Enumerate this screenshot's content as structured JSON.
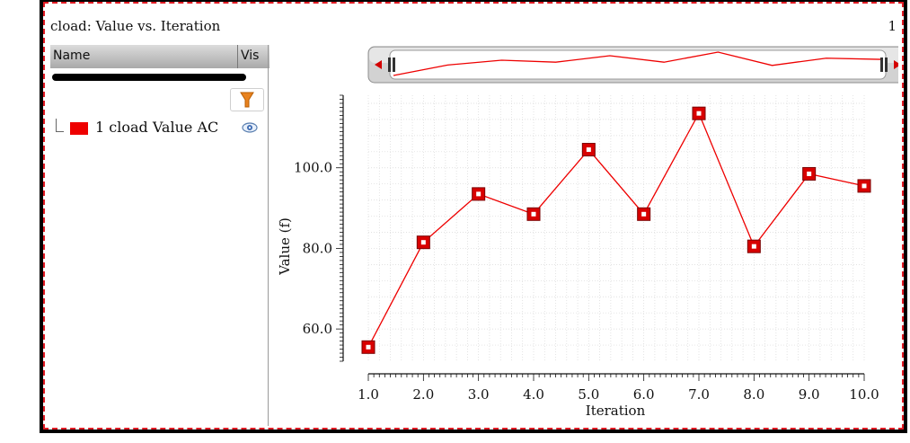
{
  "panel": {
    "title": "cload: Value vs. Iteration",
    "page_number": "1"
  },
  "series_list": {
    "col_name": "Name",
    "col_vis": "Vis",
    "items": [
      {
        "label": "1 cload Value AC",
        "color": "#ee0000"
      }
    ]
  },
  "icons": {
    "filter": "filter-icon",
    "visibility": "eye-icon",
    "scroll_left": "arrow-left-icon",
    "scroll_right": "arrow-right-icon"
  },
  "chart_data": {
    "type": "line",
    "xlabel": "Iteration",
    "ylabel": "Value (f)",
    "x": [
      1,
      2,
      3,
      4,
      5,
      6,
      7,
      8,
      9,
      10
    ],
    "series": [
      {
        "name": "1 cload Value AC",
        "color": "#ee0000",
        "values": [
          55.5,
          81.5,
          93.5,
          88.5,
          104.5,
          88.5,
          113.5,
          80.5,
          98.5,
          95.5
        ]
      }
    ],
    "xlim": [
      1,
      10
    ],
    "ylim": [
      52,
      118
    ],
    "x_ticks": [
      "1.0",
      "2.0",
      "3.0",
      "4.0",
      "5.0",
      "6.0",
      "7.0",
      "8.0",
      "9.0",
      "10.0"
    ],
    "y_ticks": [
      "60.0",
      "80.0",
      "100.0"
    ],
    "grid": true,
    "legend": "none"
  }
}
